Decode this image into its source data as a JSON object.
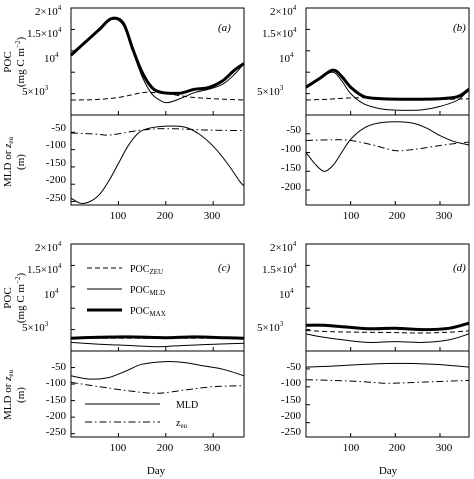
{
  "chart_data": [
    {
      "panel": "a",
      "type": "line",
      "label": "(a)",
      "xlim": [
        0,
        365
      ],
      "top": {
        "ylim": [
          0,
          25000
        ],
        "series": [
          {
            "key": "POC_ZEU",
            "style": "dashed",
            "points": [
              [
                0,
                3500
              ],
              [
                50,
                3600
              ],
              [
                100,
                4100
              ],
              [
                140,
                5000
              ],
              [
                160,
                5300
              ],
              [
                200,
                5000
              ],
              [
                250,
                4200
              ],
              [
                300,
                3800
              ],
              [
                365,
                3500
              ]
            ]
          },
          {
            "key": "POC_MLD",
            "style": "thin",
            "points": [
              [
                0,
                14000
              ],
              [
                30,
                17000
              ],
              [
                60,
                20000
              ],
              [
                85,
                22500
              ],
              [
                110,
                21000
              ],
              [
                130,
                15000
              ],
              [
                150,
                9000
              ],
              [
                170,
                5000
              ],
              [
                190,
                3300
              ],
              [
                205,
                2900
              ],
              [
                230,
                3800
              ],
              [
                260,
                5200
              ],
              [
                290,
                6000
              ],
              [
                320,
                7200
              ],
              [
                345,
                9500
              ],
              [
                365,
                12000
              ]
            ]
          },
          {
            "key": "POC_MAX",
            "style": "thick",
            "points": [
              [
                0,
                14000
              ],
              [
                30,
                17000
              ],
              [
                60,
                20000
              ],
              [
                85,
                22500
              ],
              [
                110,
                21500
              ],
              [
                130,
                15500
              ],
              [
                150,
                10000
              ],
              [
                170,
                6500
              ],
              [
                190,
                5300
              ],
              [
                230,
                5100
              ],
              [
                260,
                6000
              ],
              [
                290,
                6400
              ],
              [
                320,
                8000
              ],
              [
                345,
                10500
              ],
              [
                365,
                12000
              ]
            ]
          }
        ]
      },
      "bottom": {
        "ylim": [
          -260,
          0
        ],
        "series": [
          {
            "key": "MLD",
            "style": "thin",
            "points": [
              [
                0,
                -240
              ],
              [
                20,
                -255
              ],
              [
                40,
                -250
              ],
              [
                60,
                -230
              ],
              [
                80,
                -190
              ],
              [
                100,
                -140
              ],
              [
                120,
                -90
              ],
              [
                140,
                -55
              ],
              [
                160,
                -40
              ],
              [
                200,
                -32
              ],
              [
                240,
                -35
              ],
              [
                270,
                -55
              ],
              [
                300,
                -90
              ],
              [
                330,
                -140
              ],
              [
                355,
                -190
              ],
              [
                365,
                -205
              ]
            ]
          },
          {
            "key": "z_eu",
            "style": "dashdot",
            "points": [
              [
                0,
                -52
              ],
              [
                50,
                -55
              ],
              [
                80,
                -58
              ],
              [
                110,
                -52
              ],
              [
                140,
                -45
              ],
              [
                180,
                -40
              ],
              [
                220,
                -40
              ],
              [
                260,
                -42
              ],
              [
                300,
                -44
              ],
              [
                365,
                -45
              ]
            ]
          }
        ]
      }
    },
    {
      "panel": "b",
      "type": "line",
      "label": "(b)",
      "xlim": [
        0,
        365
      ],
      "top": {
        "ylim": [
          0,
          25000
        ],
        "series": [
          {
            "key": "POC_ZEU",
            "style": "dashed",
            "points": [
              [
                0,
                3500
              ],
              [
                50,
                3700
              ],
              [
                100,
                4000
              ],
              [
                150,
                4000
              ],
              [
                200,
                3800
              ],
              [
                250,
                3600
              ],
              [
                300,
                3600
              ],
              [
                365,
                3800
              ]
            ]
          },
          {
            "key": "POC_MLD",
            "style": "thin",
            "points": [
              [
                0,
                6500
              ],
              [
                30,
                8500
              ],
              [
                60,
                10000
              ],
              [
                80,
                8000
              ],
              [
                100,
                5000
              ],
              [
                130,
                2600
              ],
              [
                170,
                1400
              ],
              [
                210,
                1100
              ],
              [
                260,
                1200
              ],
              [
                300,
                2000
              ],
              [
                340,
                3500
              ],
              [
                365,
                6000
              ]
            ]
          },
          {
            "key": "POC_MAX",
            "style": "thick",
            "points": [
              [
                0,
                6500
              ],
              [
                30,
                8500
              ],
              [
                60,
                10500
              ],
              [
                80,
                9000
              ],
              [
                100,
                6500
              ],
              [
                130,
                4300
              ],
              [
                170,
                3800
              ],
              [
                210,
                3700
              ],
              [
                260,
                3700
              ],
              [
                300,
                3800
              ],
              [
                340,
                4300
              ],
              [
                365,
                6000
              ]
            ]
          }
        ]
      },
      "bottom": {
        "ylim": [
          -240,
          0
        ],
        "series": [
          {
            "key": "MLD",
            "style": "thin",
            "points": [
              [
                0,
                -100
              ],
              [
                20,
                -130
              ],
              [
                40,
                -150
              ],
              [
                60,
                -135
              ],
              [
                80,
                -100
              ],
              [
                100,
                -65
              ],
              [
                130,
                -35
              ],
              [
                160,
                -22
              ],
              [
                200,
                -18
              ],
              [
                240,
                -22
              ],
              [
                270,
                -35
              ],
              [
                300,
                -55
              ],
              [
                330,
                -70
              ],
              [
                365,
                -80
              ]
            ]
          },
          {
            "key": "z_eu",
            "style": "dashdot",
            "points": [
              [
                0,
                -68
              ],
              [
                60,
                -66
              ],
              [
                100,
                -68
              ],
              [
                150,
                -80
              ],
              [
                200,
                -95
              ],
              [
                240,
                -92
              ],
              [
                280,
                -85
              ],
              [
                320,
                -78
              ],
              [
                365,
                -72
              ]
            ]
          }
        ]
      }
    },
    {
      "panel": "c",
      "type": "line",
      "label": "(c)",
      "xlim": [
        0,
        365
      ],
      "top": {
        "ylim": [
          0,
          25000
        ],
        "series": [
          {
            "key": "POC_ZEU",
            "style": "dashed",
            "points": [
              [
                0,
                3000
              ],
              [
                100,
                3000
              ],
              [
                200,
                3000
              ],
              [
                300,
                3000
              ],
              [
                365,
                3000
              ]
            ]
          },
          {
            "key": "POC_MLD",
            "style": "thin",
            "points": [
              [
                0,
                2000
              ],
              [
                60,
                1600
              ],
              [
                120,
                1300
              ],
              [
                180,
                1000
              ],
              [
                220,
                1200
              ],
              [
                280,
                1500
              ],
              [
                365,
                1800
              ]
            ]
          },
          {
            "key": "POC_MAX",
            "style": "thick",
            "points": [
              [
                0,
                3000
              ],
              [
                60,
                3200
              ],
              [
                120,
                3300
              ],
              [
                200,
                3100
              ],
              [
                260,
                3300
              ],
              [
                320,
                3100
              ],
              [
                365,
                3000
              ]
            ]
          }
        ]
      },
      "bottom": {
        "ylim": [
          -260,
          0
        ],
        "series": [
          {
            "key": "MLD",
            "style": "thin",
            "points": [
              [
                0,
                -75
              ],
              [
                40,
                -85
              ],
              [
                80,
                -80
              ],
              [
                120,
                -58
              ],
              [
                150,
                -40
              ],
              [
                200,
                -32
              ],
              [
                240,
                -35
              ],
              [
                280,
                -45
              ],
              [
                320,
                -55
              ],
              [
                365,
                -75
              ]
            ]
          },
          {
            "key": "z_eu",
            "style": "dashdot",
            "points": [
              [
                0,
                -95
              ],
              [
                60,
                -108
              ],
              [
                120,
                -120
              ],
              [
                180,
                -128
              ],
              [
                240,
                -118
              ],
              [
                300,
                -108
              ],
              [
                365,
                -105
              ]
            ]
          }
        ]
      },
      "legend": {
        "top": [
          "POC_ZEU",
          "POC_MLD",
          "POC_MAX"
        ],
        "bottom": [
          "MLD",
          "z_eu"
        ]
      }
    },
    {
      "panel": "d",
      "type": "line",
      "label": "(d)",
      "xlim": [
        0,
        365
      ],
      "top": {
        "ylim": [
          0,
          25000
        ],
        "series": [
          {
            "key": "POC_ZEU",
            "style": "dashed",
            "points": [
              [
                0,
                4800
              ],
              [
                60,
                4500
              ],
              [
                120,
                4400
              ],
              [
                200,
                4300
              ],
              [
                260,
                4200
              ],
              [
                320,
                4400
              ],
              [
                365,
                4700
              ]
            ]
          },
          {
            "key": "POC_MLD",
            "style": "thin",
            "points": [
              [
                0,
                4000
              ],
              [
                40,
                3200
              ],
              [
                90,
                2500
              ],
              [
                140,
                2000
              ],
              [
                200,
                2200
              ],
              [
                260,
                2000
              ],
              [
                320,
                2600
              ],
              [
                365,
                4000
              ]
            ]
          },
          {
            "key": "POC_MAX",
            "style": "thick",
            "points": [
              [
                0,
                6000
              ],
              [
                40,
                6000
              ],
              [
                90,
                5600
              ],
              [
                140,
                5200
              ],
              [
                200,
                5300
              ],
              [
                260,
                5000
              ],
              [
                320,
                5300
              ],
              [
                365,
                6500
              ]
            ]
          }
        ]
      },
      "bottom": {
        "ylim": [
          -240,
          0
        ],
        "series": [
          {
            "key": "MLD",
            "style": "thin",
            "points": [
              [
                0,
                -45
              ],
              [
                60,
                -42
              ],
              [
                120,
                -38
              ],
              [
                180,
                -35
              ],
              [
                240,
                -35
              ],
              [
                300,
                -38
              ],
              [
                365,
                -45
              ]
            ]
          },
          {
            "key": "z_eu",
            "style": "dashdot",
            "points": [
              [
                0,
                -80
              ],
              [
                60,
                -82
              ],
              [
                120,
                -85
              ],
              [
                180,
                -90
              ],
              [
                240,
                -88
              ],
              [
                300,
                -85
              ],
              [
                365,
                -82
              ]
            ]
          }
        ]
      }
    }
  ],
  "axes": {
    "xticks": [
      "100",
      "200",
      "300"
    ],
    "x_label": "Day",
    "top_ytick_labels": {
      "t1": {
        "base": "5×10",
        "exp": "3"
      },
      "t2": {
        "base": "10",
        "exp": "4"
      },
      "t3": {
        "base": "1.5×10",
        "exp": "4"
      },
      "t4": {
        "base": "2×10",
        "exp": "4"
      }
    },
    "top_ylabel_line1": "POC",
    "top_ylabel_line2": "(mg C m",
    "top_ylabel_line2_exp": "−2",
    "top_ylabel_line2_end": ")",
    "bottom_ytick_labels_ac": [
      "-50",
      "-100",
      "-150",
      "-200",
      "-250"
    ],
    "bottom_ytick_labels_bd": [
      "-50",
      "-100",
      "-150",
      "-200"
    ],
    "bottom_ylabel_line1": "MLD or ",
    "bottom_ylabel_line1_z": "z",
    "bottom_ylabel_line1_sub": "eu",
    "bottom_ylabel_line2": "(m)"
  },
  "legend_labels": {
    "poc_main": "POC",
    "zeu_sub": "ZEU",
    "mld_sub": "MLD",
    "max_sub": "MAX",
    "mld": "MLD",
    "z": "z",
    "eu_sub": "eu"
  }
}
